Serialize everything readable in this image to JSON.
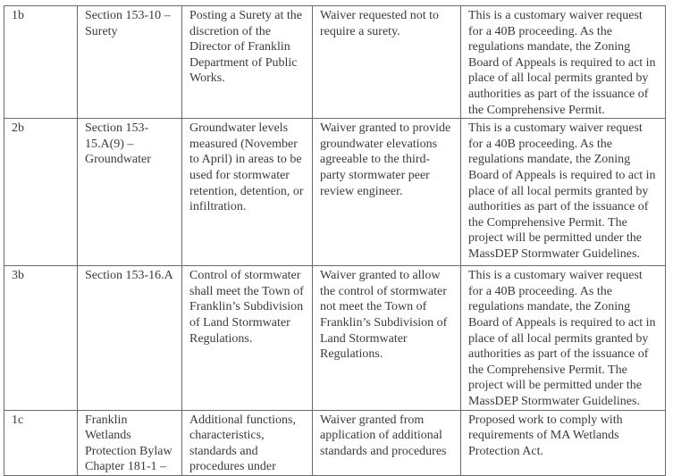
{
  "rows": [
    {
      "id": "1b",
      "section": "Section 153-10 – Surety",
      "requirement": "Posting a Surety at the discretion of the Director of Franklin Department of Public Works.",
      "waiver": "Waiver requested not to require a surety.",
      "justification": "This is a customary waiver request for a 40B proceeding. As the regulations mandate, the Zoning Board of Appeals is required to act in place of all local permits granted by authorities as part of the issuance of the Comprehensive Permit."
    },
    {
      "id": "2b",
      "section": "Section 153-15.A(9) – Groundwater",
      "requirement": "Groundwater levels measured (November to April) in areas to be used for stormwater retention, detention, or infiltration.",
      "waiver": "Waiver granted to provide groundwater elevations agreeable to the third-party stormwater peer review engineer.",
      "justification": "This is a customary waiver request for a 40B proceeding. As the regulations mandate, the Zoning Board of Appeals is required to act in place of all local permits granted by authorities as part of the issuance of the Comprehensive Permit. The project will be permitted under the MassDEP Stormwater Guidelines."
    },
    {
      "id": "3b",
      "section": "Section 153-16.A",
      "requirement": "Control of stormwater shall meet the Town of Franklin’s Subdivision of Land Stormwater Regulations.",
      "waiver": "Waiver granted to allow the control of stormwater not meet the Town of Franklin’s Subdivision of Land Stormwater Regulations.",
      "justification": "This is a customary waiver request for a 40B proceeding. As the regulations mandate, the Zoning Board of Appeals is required to act in place of all local permits granted by authorities as part of the issuance of the Comprehensive Permit. The project will be permitted under the MassDEP Stormwater Guidelines."
    },
    {
      "id": "1c",
      "section": "Franklin Wetlands Protection Bylaw Chapter 181-1 –",
      "requirement": "Additional functions, characteristics, standards and procedures under",
      "waiver": "Waiver granted from application of additional standards and procedures",
      "justification": "Proposed work to comply with requirements of MA Wetlands Protection Act."
    }
  ]
}
